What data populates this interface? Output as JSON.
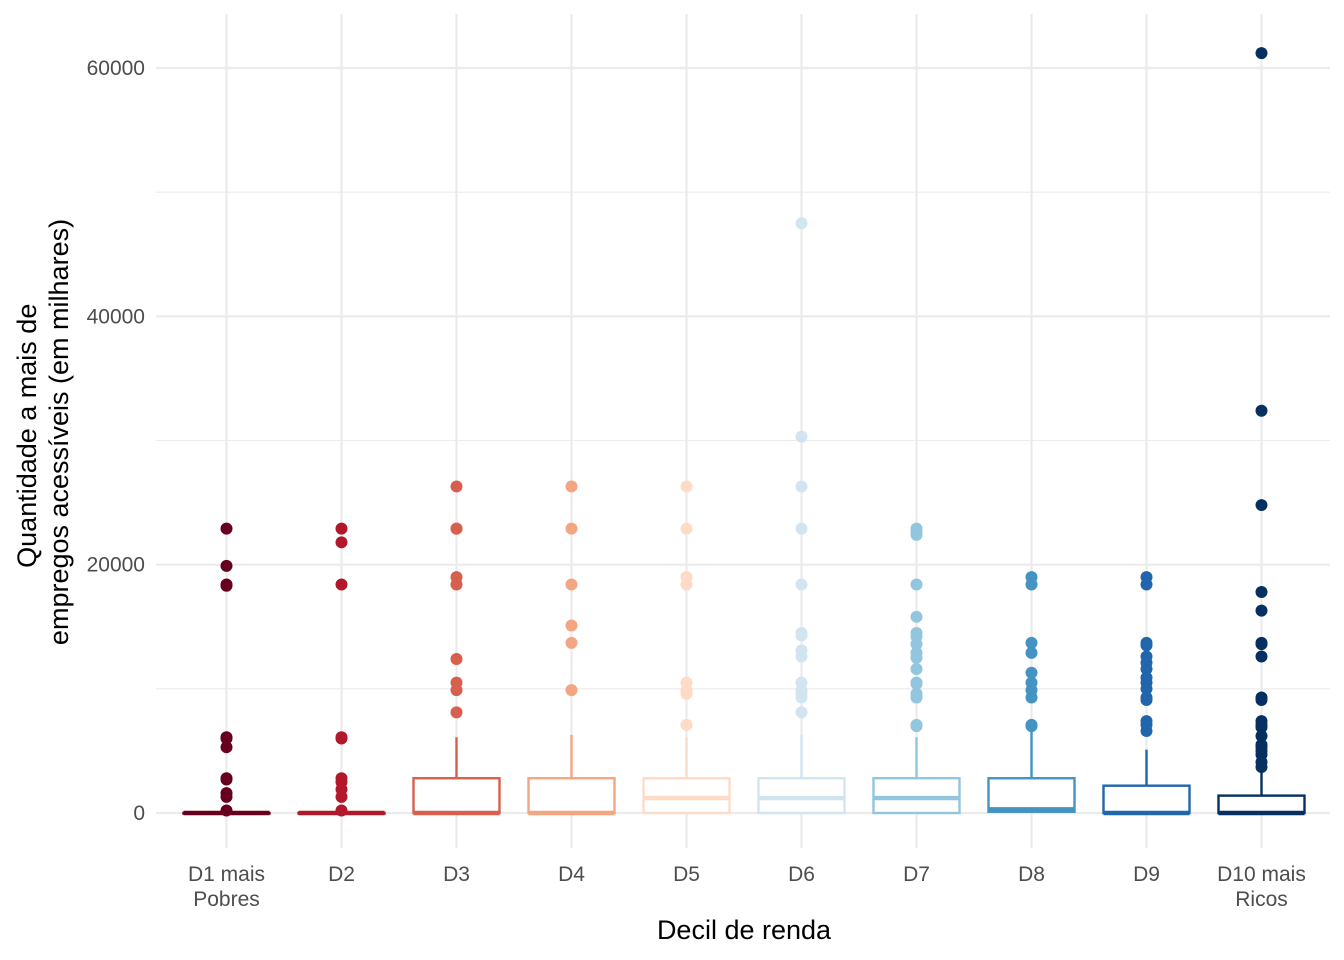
{
  "chart_data": {
    "type": "boxplot",
    "xlabel": "Decil de renda",
    "ylabel_lines": [
      "Quantidade a mais de",
      "empregos acessíveis (em milhares)"
    ],
    "ylim": [
      -2800,
      64500
    ],
    "y_ticks": [
      0,
      20000,
      40000,
      60000
    ],
    "y_minor_ticks": [
      10000,
      30000,
      50000
    ],
    "grid": true,
    "legend": "none",
    "categories": [
      {
        "lines": [
          "D1 mais",
          "Pobres"
        ]
      },
      {
        "lines": [
          "D2"
        ]
      },
      {
        "lines": [
          "D3"
        ]
      },
      {
        "lines": [
          "D4"
        ]
      },
      {
        "lines": [
          "D5"
        ]
      },
      {
        "lines": [
          "D6"
        ]
      },
      {
        "lines": [
          "D7"
        ]
      },
      {
        "lines": [
          "D8"
        ]
      },
      {
        "lines": [
          "D9"
        ]
      },
      {
        "lines": [
          "D10 mais",
          "Ricos"
        ]
      }
    ],
    "boxes": [
      {
        "color": "#67001f",
        "q1": 0,
        "median": 0,
        "q3": 0,
        "whisker_low": 0,
        "whisker_high": 0,
        "outliers": [
          22900,
          19900,
          18400,
          18300,
          6100,
          6000,
          5300,
          2800,
          2700,
          1600,
          1300,
          200
        ]
      },
      {
        "color": "#b2182b",
        "q1": 0,
        "median": 0,
        "q3": 0,
        "whisker_low": 0,
        "whisker_high": 0,
        "outliers": [
          22900,
          21800,
          18400,
          6100,
          6000,
          2800,
          2500,
          1900,
          1300,
          200
        ]
      },
      {
        "color": "#d6604d",
        "q1": 0,
        "median": 0,
        "q3": 2800,
        "whisker_low": 0,
        "whisker_high": 6100,
        "outliers": [
          26300,
          22900,
          22900,
          19000,
          18400,
          12400,
          10500,
          9900,
          8100
        ]
      },
      {
        "color": "#f4a582",
        "q1": 0,
        "median": 0,
        "q3": 2800,
        "whisker_low": 0,
        "whisker_high": 6300,
        "outliers": [
          26300,
          22900,
          18400,
          15100,
          13700,
          9900
        ]
      },
      {
        "color": "#fddbc7",
        "q1": 0,
        "median": 1200,
        "q3": 2800,
        "whisker_low": 0,
        "whisker_high": 6100,
        "outliers": [
          26300,
          22900,
          19000,
          18400,
          10500,
          9900,
          9600,
          7100
        ]
      },
      {
        "color": "#d1e5f0",
        "q1": 0,
        "median": 1200,
        "q3": 2800,
        "whisker_low": 0,
        "whisker_high": 6300,
        "outliers": [
          47500,
          30300,
          26300,
          22900,
          18400,
          14500,
          14300,
          13100,
          12600,
          10500,
          9900,
          9600,
          9300,
          8100
        ]
      },
      {
        "color": "#92c5de",
        "q1": 0,
        "median": 1200,
        "q3": 2800,
        "whisker_low": 0,
        "whisker_high": 6100,
        "outliers": [
          22900,
          22600,
          22400,
          18400,
          15800,
          14500,
          14200,
          13600,
          12900,
          12500,
          11600,
          10500,
          10400,
          9600,
          9300,
          7100,
          7000
        ]
      },
      {
        "color": "#4393c3",
        "q1": 100,
        "median": 300,
        "q3": 2800,
        "whisker_low": 0,
        "whisker_high": 6900,
        "outliers": [
          19000,
          18400,
          13700,
          12900,
          11300,
          10500,
          9900,
          9300,
          7100,
          7000
        ]
      },
      {
        "color": "#2166ac",
        "q1": 0,
        "median": 0,
        "q3": 2200,
        "whisker_low": 0,
        "whisker_high": 5100,
        "outliers": [
          19000,
          18400,
          13700,
          13500,
          12600,
          12100,
          11600,
          10900,
          10500,
          10000,
          9300,
          9100,
          7400,
          7100,
          6600
        ]
      },
      {
        "color": "#053061",
        "q1": 0,
        "median": 0,
        "q3": 1400,
        "whisker_low": 0,
        "whisker_high": 3700,
        "outliers": [
          61200,
          32400,
          24800,
          17800,
          16300,
          13700,
          13600,
          12600,
          9300,
          9100,
          7400,
          7100,
          6900,
          6200,
          5500,
          5300,
          5000,
          4700,
          4100,
          3700
        ]
      }
    ]
  }
}
